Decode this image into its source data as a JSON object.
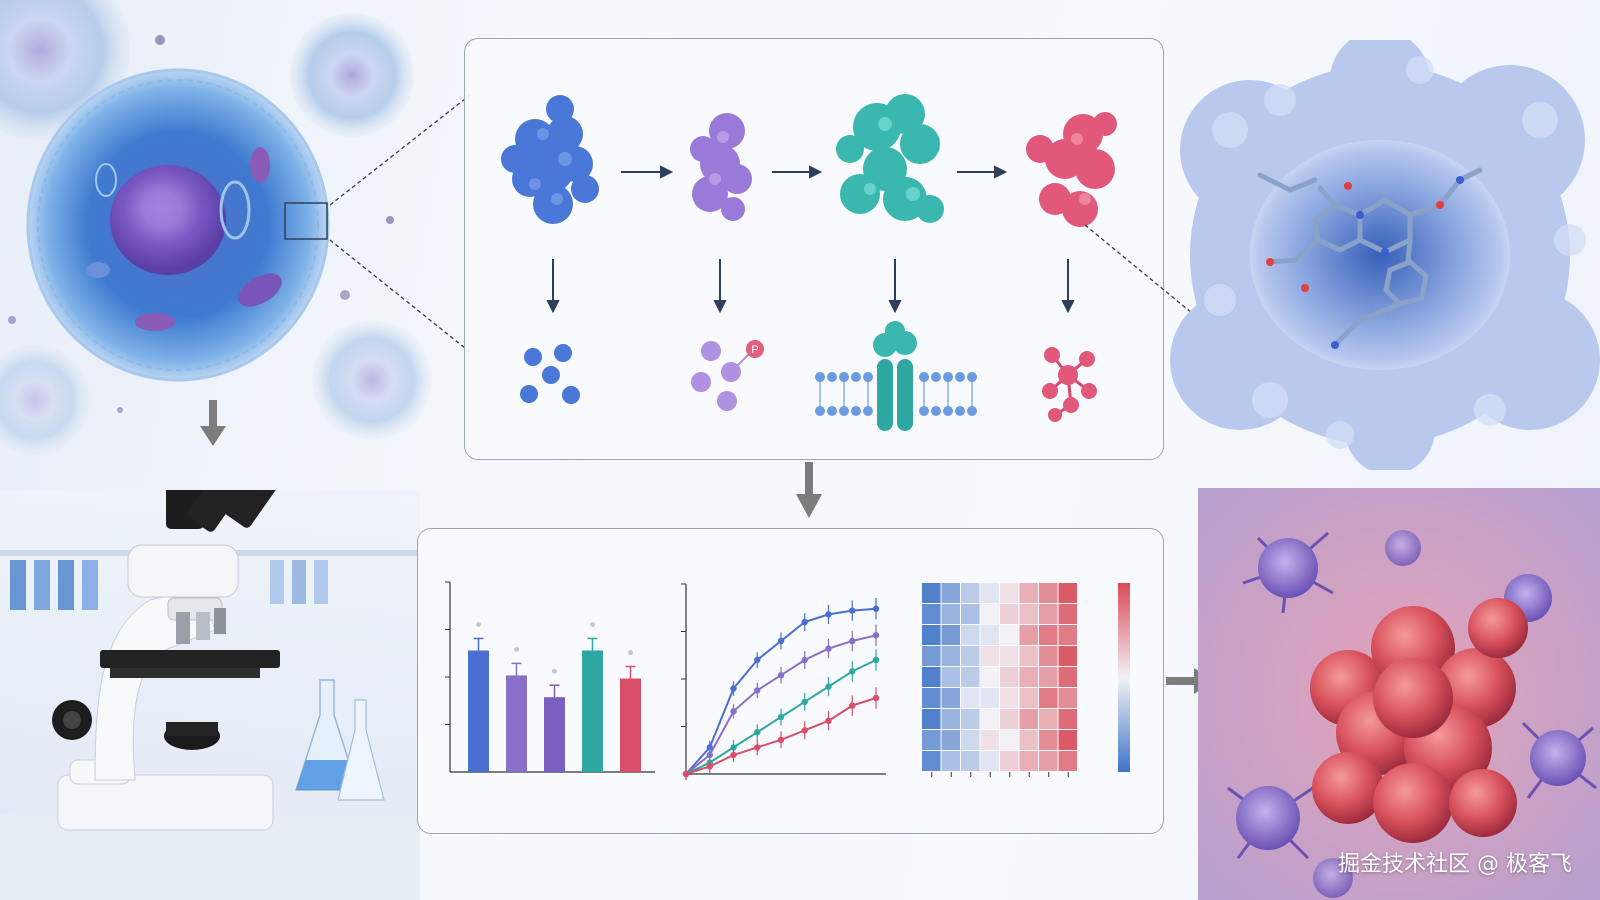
{
  "watermark": "掘金技术社区 @ 极客飞",
  "colors": {
    "stage1": "#4a78d8",
    "stage2": "#9a7ad8",
    "stage3": "#3ab8b0",
    "stage4": "#e2587a",
    "arrow": "#2e3f5c",
    "panel_border": "#9aa6bd",
    "heat_low": "#3f74c8",
    "heat_high": "#d94a58"
  },
  "icons": {
    "cell": "cell-illustration",
    "microscope": "microscope-illustration",
    "protein_surface": "protein-binding-pocket-illustration",
    "tumor": "tumor-cluster-illustration"
  },
  "chart_data": [
    {
      "type": "bar",
      "categories": [
        "",
        "",
        "",
        "",
        ""
      ],
      "values": [
        0.78,
        0.62,
        0.48,
        0.78,
        0.6
      ],
      "colors": [
        "#4a6fd0",
        "#8a6fc8",
        "#7a5fc0",
        "#2fa8a4",
        "#d94f6a"
      ],
      "ylim": [
        0,
        1
      ],
      "grid": false
    },
    {
      "type": "line",
      "x": [
        0,
        1,
        2,
        3,
        4,
        5,
        6,
        7,
        8
      ],
      "series": [
        {
          "values": [
            0.0,
            0.14,
            0.45,
            0.6,
            0.7,
            0.8,
            0.84,
            0.86,
            0.87
          ],
          "color": "#4a6fd0"
        },
        {
          "values": [
            0.0,
            0.1,
            0.33,
            0.44,
            0.52,
            0.6,
            0.66,
            0.7,
            0.73
          ],
          "color": "#8a6fc8"
        },
        {
          "values": [
            0.0,
            0.06,
            0.14,
            0.22,
            0.3,
            0.38,
            0.46,
            0.54,
            0.6
          ],
          "color": "#2fa8a4"
        },
        {
          "values": [
            0.0,
            0.04,
            0.1,
            0.14,
            0.18,
            0.23,
            0.28,
            0.36,
            0.4
          ],
          "color": "#d94f6a"
        }
      ],
      "ylim": [
        0,
        1
      ],
      "grid": false
    },
    {
      "type": "heatmap",
      "rows": 9,
      "cols": 8,
      "values": [
        [
          -0.9,
          -0.6,
          -0.3,
          -0.1,
          0.1,
          0.4,
          0.6,
          0.9
        ],
        [
          -0.8,
          -0.5,
          -0.4,
          0.0,
          0.2,
          0.3,
          0.5,
          0.8
        ],
        [
          -0.9,
          -0.7,
          -0.2,
          -0.1,
          0.0,
          0.5,
          0.7,
          0.7
        ],
        [
          -0.7,
          -0.5,
          -0.3,
          0.1,
          0.1,
          0.3,
          0.6,
          0.9
        ],
        [
          -0.9,
          -0.4,
          -0.3,
          0.0,
          0.2,
          0.4,
          0.5,
          0.8
        ],
        [
          -0.8,
          -0.6,
          -0.1,
          -0.1,
          0.1,
          0.3,
          0.7,
          0.6
        ],
        [
          -0.9,
          -0.5,
          -0.3,
          0.0,
          0.2,
          0.5,
          0.4,
          0.8
        ],
        [
          -0.7,
          -0.6,
          -0.2,
          0.1,
          0.0,
          0.3,
          0.6,
          0.9
        ],
        [
          -0.8,
          -0.4,
          -0.3,
          -0.1,
          0.2,
          0.4,
          0.5,
          0.7
        ]
      ],
      "colorbar": true
    }
  ]
}
